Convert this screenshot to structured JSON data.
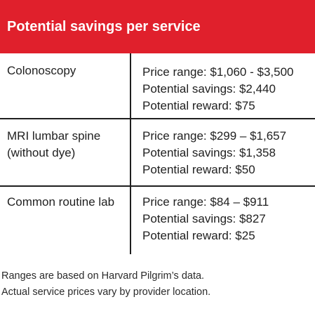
{
  "title": "Potential savings per service",
  "rows": [
    {
      "service": "Colonoscopy",
      "price_range": "Price range: $1,060 - $3,500",
      "potential_savings": "Potential savings: $2,440",
      "potential_reward": "Potential reward: $75"
    },
    {
      "service": "MRI lumbar spine (without dye)",
      "price_range": "Price range: $299 – $1,657",
      "potential_savings": "Potential savings: $1,358",
      "potential_reward": "Potential reward: $50"
    },
    {
      "service": "Common routine lab",
      "price_range": "Price range: $84 – $911",
      "potential_savings": "Potential savings: $827",
      "potential_reward": "Potential reward: $25"
    }
  ],
  "footnote": {
    "line1": "Ranges are based on Harvard Pilgrim’s data.",
    "line2": "Actual service prices vary by provider location."
  },
  "colors": {
    "header_background": "#e0202c",
    "header_text": "#ffffff",
    "rule_lines": "#1f1f1f"
  }
}
